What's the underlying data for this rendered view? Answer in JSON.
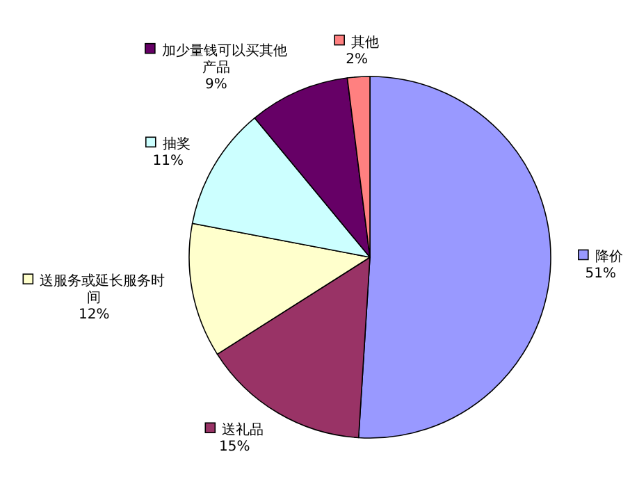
{
  "chart_data": {
    "type": "pie",
    "categories": [
      "降价",
      "送礼品",
      "送服务或延长服务时间",
      "抽奖",
      "加少量钱可以买其他产品",
      "其他"
    ],
    "values": [
      51,
      15,
      12,
      11,
      9,
      2
    ],
    "value_labels": [
      "51%",
      "15%",
      "12%",
      "11%",
      "9%",
      "2%"
    ],
    "legend": "top left",
    "colors": [
      "#9999ff",
      "#993366",
      "#ffffcc",
      "#ccffff",
      "#660066",
      "#ff8080"
    ]
  }
}
